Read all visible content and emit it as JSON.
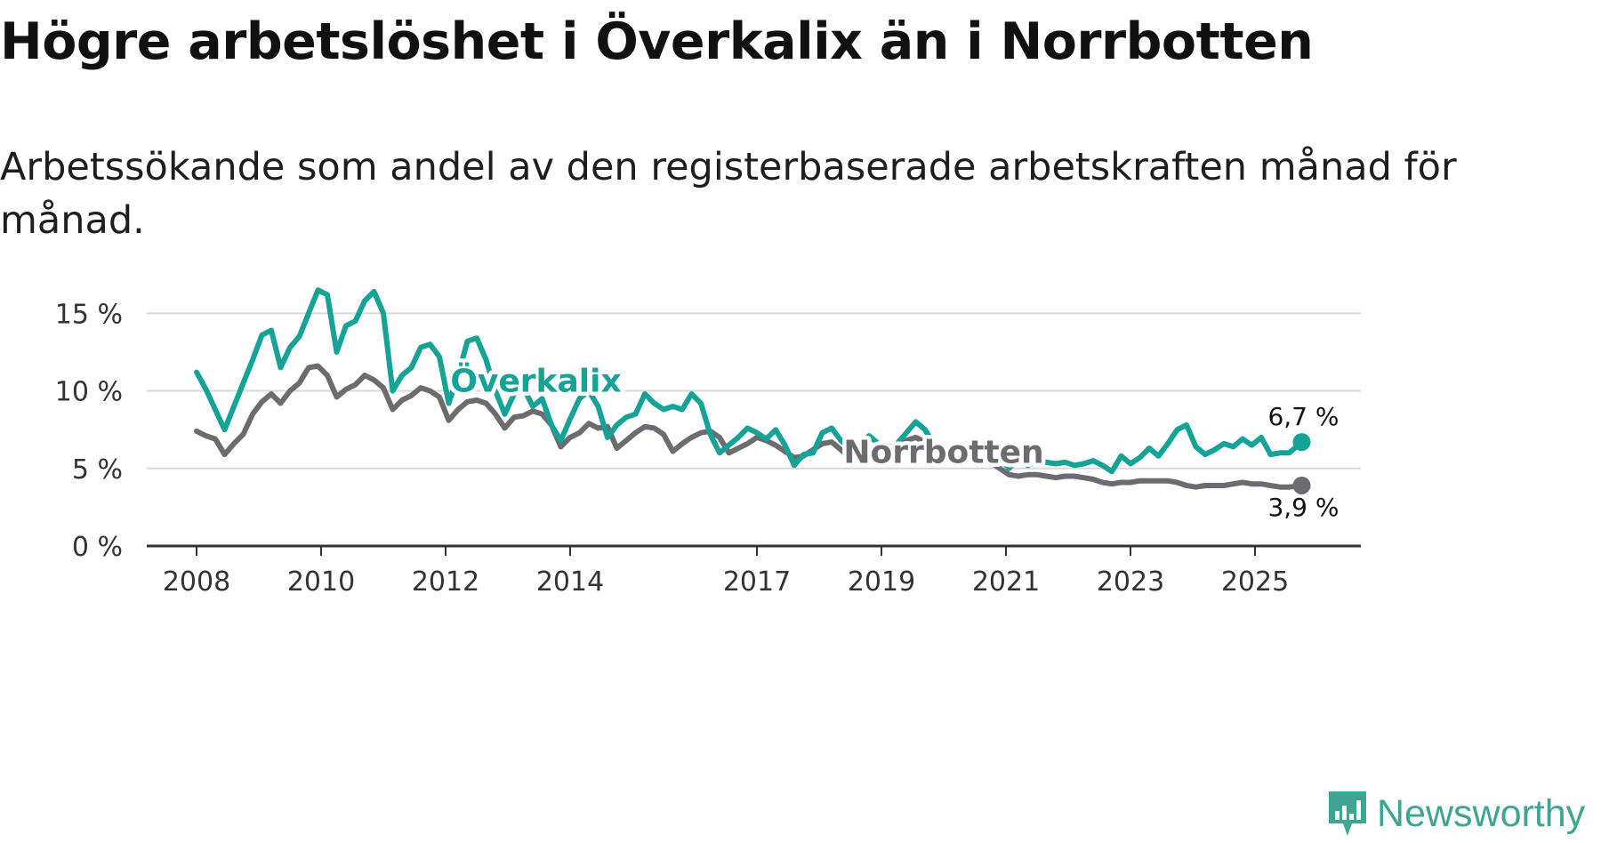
{
  "title": "Högre arbetslöshet i Överkalix än i Norrbotten",
  "subtitle": "Arbetssökande som andel av den registerbaserade arbetskraften månad för månad.",
  "brand": "Newsworthy",
  "colors": {
    "overkalix": "#14a396",
    "norrbotten": "#6b6b70",
    "grid": "#d9d9d9",
    "axis": "#333333"
  },
  "chart_data": {
    "type": "line",
    "title": "Högre arbetslöshet i Överkalix än i Norrbotten",
    "ylim": [
      0,
      18
    ],
    "y_ticks": [
      0,
      5,
      10,
      15
    ],
    "y_tick_labels": [
      "0 %",
      "5 %",
      "10 %",
      "15 %"
    ],
    "x_range": [
      2007.2,
      2026.7
    ],
    "x_ticks": [
      2008,
      2010,
      2012,
      2014,
      2017,
      2019,
      2021,
      2023,
      2025
    ],
    "x_tick_labels": [
      "2008",
      "2010",
      "2012",
      "2014",
      "2017",
      "2019",
      "2021",
      "2023",
      "2025"
    ],
    "series": [
      {
        "name": "Överkalix",
        "color": "#14a396",
        "end_label": "6,7 %",
        "x": [
          2008.0,
          2008.15,
          2008.3,
          2008.45,
          2008.6,
          2008.75,
          2008.9,
          2009.05,
          2009.2,
          2009.35,
          2009.5,
          2009.65,
          2009.8,
          2009.95,
          2010.1,
          2010.25,
          2010.4,
          2010.55,
          2010.7,
          2010.85,
          2011.0,
          2011.15,
          2011.3,
          2011.45,
          2011.6,
          2011.75,
          2011.9,
          2012.05,
          2012.2,
          2012.35,
          2012.5,
          2012.65,
          2012.8,
          2012.95,
          2013.1,
          2013.25,
          2013.4,
          2013.55,
          2013.7,
          2013.85,
          2014.0,
          2014.15,
          2014.3,
          2014.45,
          2014.6,
          2014.75,
          2014.9,
          2015.05,
          2015.2,
          2015.35,
          2015.5,
          2015.65,
          2015.8,
          2015.95,
          2016.1,
          2016.25,
          2016.4,
          2016.55,
          2016.7,
          2016.85,
          2017.0,
          2017.15,
          2017.3,
          2017.45,
          2017.6,
          2017.75,
          2017.9,
          2018.05,
          2018.2,
          2018.35,
          2018.5,
          2018.65,
          2018.8,
          2018.95,
          2019.1,
          2019.25,
          2019.4,
          2019.55,
          2019.7,
          2019.85,
          2020.0,
          2020.15,
          2020.3,
          2020.45,
          2020.6,
          2020.75,
          2020.9,
          2021.05,
          2021.2,
          2021.35,
          2021.5,
          2021.65,
          2021.8,
          2021.95,
          2022.1,
          2022.25,
          2022.4,
          2022.55,
          2022.7,
          2022.85,
          2023.0,
          2023.15,
          2023.3,
          2023.45,
          2023.6,
          2023.75,
          2023.9,
          2024.05,
          2024.2,
          2024.35,
          2024.5,
          2024.65,
          2024.8,
          2024.95,
          2025.1,
          2025.25,
          2025.4,
          2025.55,
          2025.75
        ],
        "values": [
          11.2,
          10.1,
          8.8,
          7.5,
          9.0,
          10.5,
          12.0,
          13.6,
          13.9,
          11.5,
          12.8,
          13.5,
          15.0,
          16.5,
          16.2,
          12.5,
          14.2,
          14.5,
          15.8,
          16.4,
          15.0,
          10.0,
          11.0,
          11.5,
          12.8,
          13.0,
          12.2,
          9.2,
          11.0,
          13.2,
          13.4,
          12.0,
          10.0,
          8.5,
          9.8,
          10.2,
          9.0,
          9.5,
          7.8,
          6.8,
          8.2,
          9.5,
          10.0,
          9.0,
          7.0,
          7.8,
          8.3,
          8.5,
          9.8,
          9.2,
          8.8,
          9.0,
          8.8,
          9.8,
          9.2,
          7.2,
          6.0,
          6.5,
          7.0,
          7.6,
          7.3,
          6.9,
          7.5,
          6.5,
          5.2,
          5.9,
          6.0,
          7.3,
          7.6,
          6.8,
          6.3,
          6.4,
          7.1,
          6.6,
          6.3,
          6.6,
          7.3,
          8.0,
          7.5,
          6.5,
          5.8,
          5.9,
          5.4,
          6.0,
          6.5,
          6.3,
          5.7,
          5.0,
          5.6,
          5.2,
          5.5,
          5.4,
          5.3,
          5.4,
          5.2,
          5.3,
          5.5,
          5.2,
          4.8,
          5.8,
          5.3,
          5.7,
          6.3,
          5.8,
          6.6,
          7.5,
          7.8,
          6.4,
          5.9,
          6.2,
          6.6,
          6.4,
          6.9,
          6.5,
          7.0,
          5.9,
          6.0,
          6.0,
          6.7
        ]
      },
      {
        "name": "Norrbotten",
        "color": "#6b6b70",
        "end_label": "3,9 %",
        "x": [
          2008.0,
          2008.15,
          2008.3,
          2008.45,
          2008.6,
          2008.75,
          2008.9,
          2009.05,
          2009.2,
          2009.35,
          2009.5,
          2009.65,
          2009.8,
          2009.95,
          2010.1,
          2010.25,
          2010.4,
          2010.55,
          2010.7,
          2010.85,
          2011.0,
          2011.15,
          2011.3,
          2011.45,
          2011.6,
          2011.75,
          2011.9,
          2012.05,
          2012.2,
          2012.35,
          2012.5,
          2012.65,
          2012.8,
          2012.95,
          2013.1,
          2013.25,
          2013.4,
          2013.55,
          2013.7,
          2013.85,
          2014.0,
          2014.15,
          2014.3,
          2014.45,
          2014.6,
          2014.75,
          2014.9,
          2015.05,
          2015.2,
          2015.35,
          2015.5,
          2015.65,
          2015.8,
          2015.95,
          2016.1,
          2016.25,
          2016.4,
          2016.55,
          2016.7,
          2016.85,
          2017.0,
          2017.15,
          2017.3,
          2017.45,
          2017.6,
          2017.75,
          2017.9,
          2018.05,
          2018.2,
          2018.35,
          2018.5,
          2018.65,
          2018.8,
          2018.95,
          2019.1,
          2019.25,
          2019.4,
          2019.55,
          2019.7,
          2019.85,
          2020.0,
          2020.15,
          2020.3,
          2020.45,
          2020.6,
          2020.75,
          2020.9,
          2021.05,
          2021.2,
          2021.35,
          2021.5,
          2021.65,
          2021.8,
          2021.95,
          2022.1,
          2022.25,
          2022.4,
          2022.55,
          2022.7,
          2022.85,
          2023.0,
          2023.15,
          2023.3,
          2023.45,
          2023.6,
          2023.75,
          2023.9,
          2024.05,
          2024.2,
          2024.35,
          2024.5,
          2024.65,
          2024.8,
          2024.95,
          2025.1,
          2025.25,
          2025.4,
          2025.55,
          2025.75
        ],
        "values": [
          7.4,
          7.1,
          6.9,
          5.9,
          6.6,
          7.2,
          8.5,
          9.3,
          9.8,
          9.2,
          10.0,
          10.5,
          11.5,
          11.6,
          11.0,
          9.6,
          10.1,
          10.4,
          11.0,
          10.7,
          10.2,
          8.8,
          9.4,
          9.7,
          10.2,
          10.0,
          9.6,
          8.1,
          8.8,
          9.3,
          9.4,
          9.2,
          8.5,
          7.6,
          8.3,
          8.4,
          8.7,
          8.5,
          7.8,
          6.4,
          7.0,
          7.3,
          7.9,
          7.6,
          7.7,
          6.3,
          6.8,
          7.3,
          7.7,
          7.6,
          7.2,
          6.1,
          6.6,
          7.0,
          7.3,
          7.4,
          7.0,
          6.0,
          6.3,
          6.6,
          7.0,
          6.8,
          6.5,
          6.1,
          5.7,
          5.8,
          6.2,
          6.6,
          6.7,
          6.2,
          5.7,
          5.9,
          6.2,
          6.0,
          5.8,
          6.2,
          6.8,
          7.0,
          6.7,
          6.0,
          5.6,
          5.6,
          5.5,
          5.6,
          5.6,
          5.4,
          5.0,
          4.6,
          4.5,
          4.6,
          4.6,
          4.5,
          4.4,
          4.5,
          4.5,
          4.4,
          4.3,
          4.1,
          4.0,
          4.1,
          4.1,
          4.2,
          4.2,
          4.2,
          4.2,
          4.1,
          3.9,
          3.8,
          3.9,
          3.9,
          3.9,
          4.0,
          4.1,
          4.0,
          4.0,
          3.9,
          3.8,
          3.8,
          3.9
        ]
      }
    ],
    "inline_labels": [
      {
        "series": "Överkalix",
        "text": "Överkalix",
        "x": 2013.45,
        "y": 10.7
      },
      {
        "series": "Norrbotten",
        "text": "Norrbotten",
        "x": 2020.0,
        "y": 6.1
      }
    ]
  }
}
